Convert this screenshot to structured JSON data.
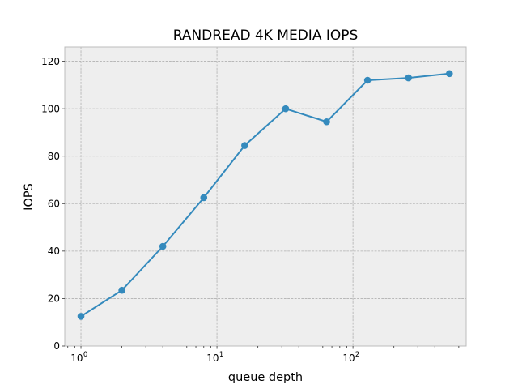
{
  "chart_data": {
    "type": "line",
    "title": "RANDREAD 4K MEDIA IOPS",
    "xlabel": "queue depth",
    "ylabel": "IOPS",
    "x_scale": "log",
    "xlim": [
      0.76,
      680
    ],
    "ylim": [
      0,
      126
    ],
    "grid": true,
    "y_ticks": [
      0,
      20,
      40,
      60,
      80,
      100,
      120
    ],
    "x_ticks": [
      {
        "value": 1,
        "base": "10",
        "exp": "0"
      },
      {
        "value": 10,
        "base": "10",
        "exp": "1"
      },
      {
        "value": 100,
        "base": "10",
        "exp": "2"
      }
    ],
    "series": [
      {
        "x": [
          1,
          2,
          4,
          8,
          16,
          32,
          64,
          128,
          256,
          512
        ],
        "values": [
          12.5,
          23.5,
          42,
          62.5,
          84.5,
          100,
          94.5,
          112,
          113,
          114.8
        ]
      }
    ],
    "colors": {
      "line": "#348abd",
      "plot_bg": "#eeeeee",
      "grid": "#b0b0b0",
      "frame": "#bcbcbc"
    }
  }
}
